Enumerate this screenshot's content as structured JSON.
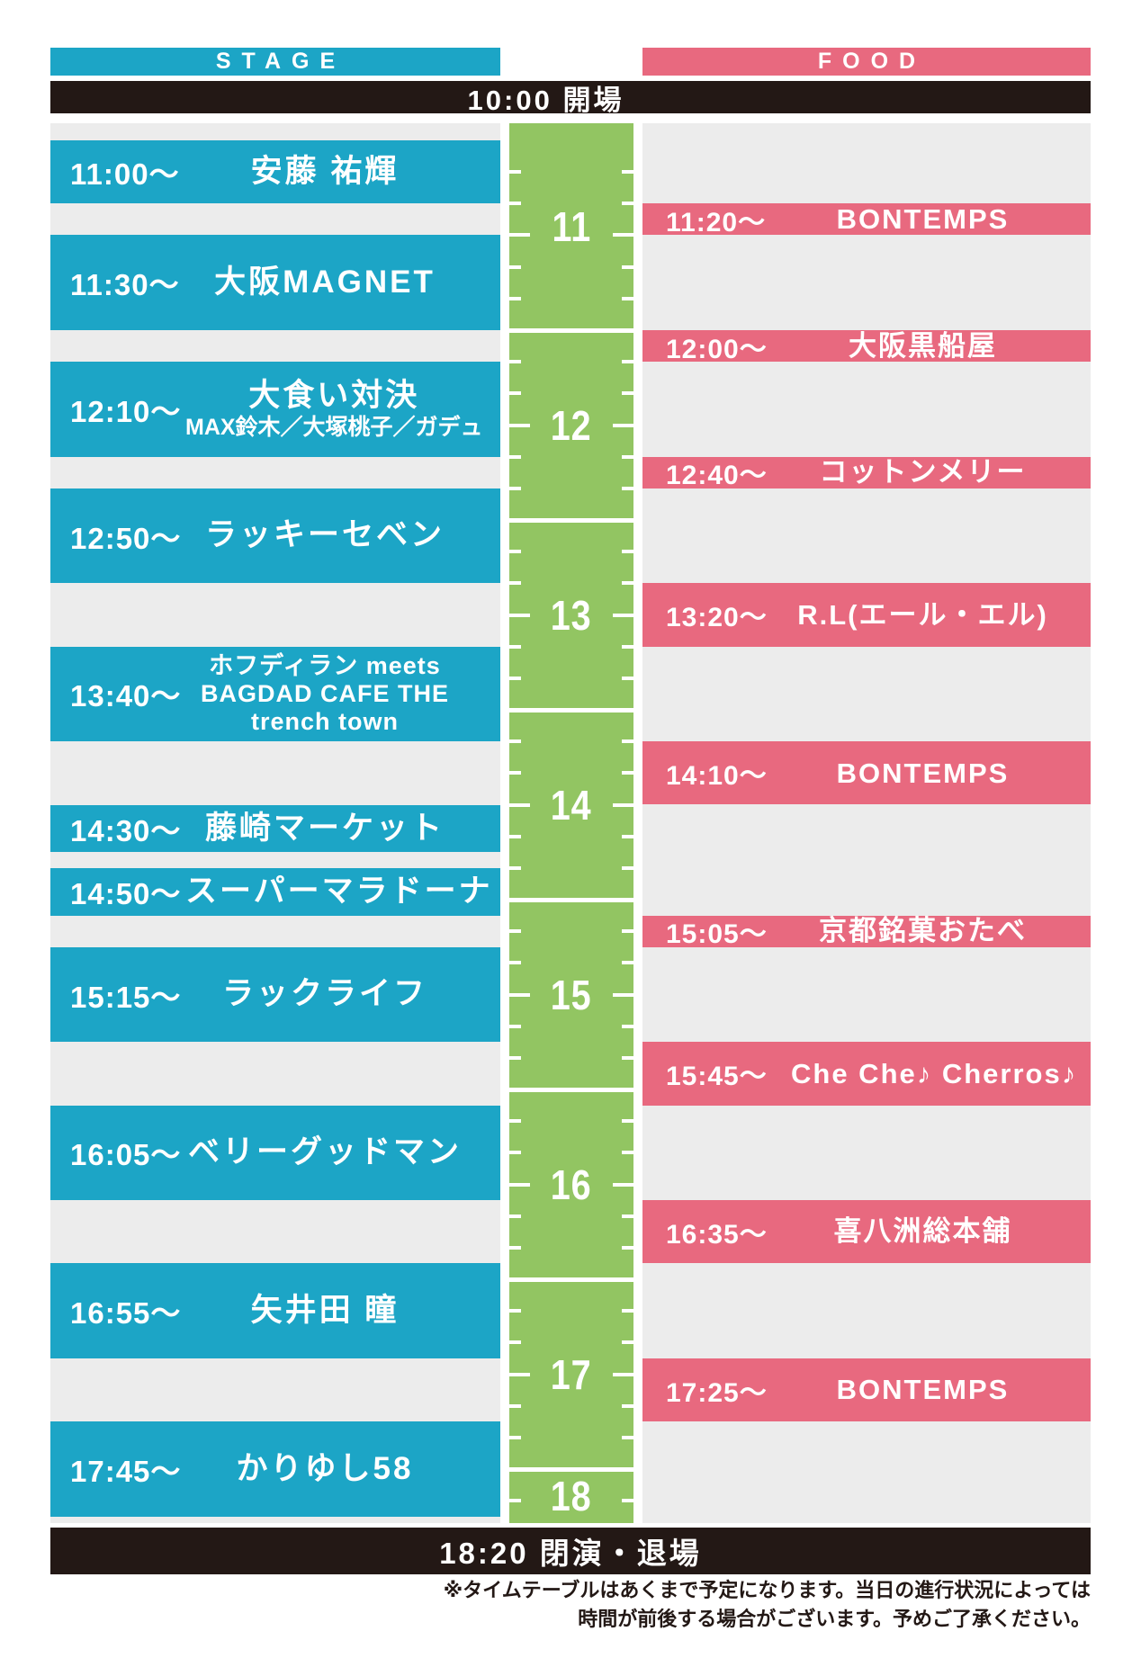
{
  "headers": {
    "stage": "STAGE",
    "food": "FOOD"
  },
  "open_bar": {
    "text": "10:00 開場"
  },
  "close_bar": {
    "text": "18:20 閉演・退場"
  },
  "timeline": {
    "hours": [
      "11",
      "12",
      "13",
      "14",
      "15",
      "16",
      "17",
      "18"
    ]
  },
  "stage_events": [
    {
      "time_label": "11:00～",
      "start": "11:00",
      "duration_min": 20,
      "title": "安藤 祐輝",
      "sub": []
    },
    {
      "time_label": "11:30～",
      "start": "11:30",
      "duration_min": 30,
      "title": "大阪MAGNET",
      "sub": []
    },
    {
      "time_label": "12:10～",
      "start": "12:10",
      "duration_min": 30,
      "title": "大食い対決",
      "sub": [
        "MAX鈴木／大塚桃子／ガデュ"
      ]
    },
    {
      "time_label": "12:50～",
      "start": "12:50",
      "duration_min": 30,
      "title": "ラッキーセベン",
      "sub": []
    },
    {
      "time_label": "13:40～",
      "start": "13:40",
      "duration_min": 30,
      "title": "ホフディラン meets",
      "small_title": true,
      "sub": [
        "BAGDAD CAFE THE",
        "trench town"
      ]
    },
    {
      "time_label": "14:30～",
      "start": "14:30",
      "duration_min": 15,
      "title": "藤崎マーケット",
      "sub": []
    },
    {
      "time_label": "14:50～",
      "start": "14:50",
      "duration_min": 15,
      "title": "スーパーマラドーナ",
      "sub": []
    },
    {
      "time_label": "15:15～",
      "start": "15:15",
      "duration_min": 30,
      "title": "ラックライフ",
      "sub": []
    },
    {
      "time_label": "16:05～",
      "start": "16:05",
      "duration_min": 30,
      "title": "ベリーグッドマン",
      "sub": []
    },
    {
      "time_label": "16:55～",
      "start": "16:55",
      "duration_min": 30,
      "title": "矢井田 瞳",
      "sub": []
    },
    {
      "time_label": "17:45～",
      "start": "17:45",
      "duration_min": 30,
      "title": "かりゆし58",
      "sub": []
    }
  ],
  "food_events": [
    {
      "time_label": "11:20～",
      "start": "11:20",
      "duration_min": 10,
      "title": "BONTEMPS"
    },
    {
      "time_label": "12:00～",
      "start": "12:00",
      "duration_min": 10,
      "title": "大阪黒船屋"
    },
    {
      "time_label": "12:40～",
      "start": "12:40",
      "duration_min": 10,
      "title": "コットンメリー"
    },
    {
      "time_label": "13:20～",
      "start": "13:20",
      "duration_min": 20,
      "title": "R.L(エール・エル)"
    },
    {
      "time_label": "14:10～",
      "start": "14:10",
      "duration_min": 20,
      "title": "BONTEMPS"
    },
    {
      "time_label": "15:05～",
      "start": "15:05",
      "duration_min": 10,
      "title": "京都銘菓おたべ"
    },
    {
      "time_label": "15:45～",
      "start": "15:45",
      "duration_min": 20,
      "title": "Che Che♪ Cherros♪"
    },
    {
      "time_label": "16:35～",
      "start": "16:35",
      "duration_min": 20,
      "title": "喜八洲総本舗"
    },
    {
      "time_label": "17:25～",
      "start": "17:25",
      "duration_min": 20,
      "title": "BONTEMPS"
    }
  ],
  "footer": {
    "line1": "※タイムテーブルはあくまで予定になります。当日の進行状況によっては",
    "line2": "時間が前後する場合がございます。予めご了承ください。"
  },
  "colors": {
    "stage": "#1CA5C6",
    "food": "#E8697F",
    "timeline": "#92C562",
    "bar": "#231815",
    "track_bg": "#ECECEC"
  }
}
